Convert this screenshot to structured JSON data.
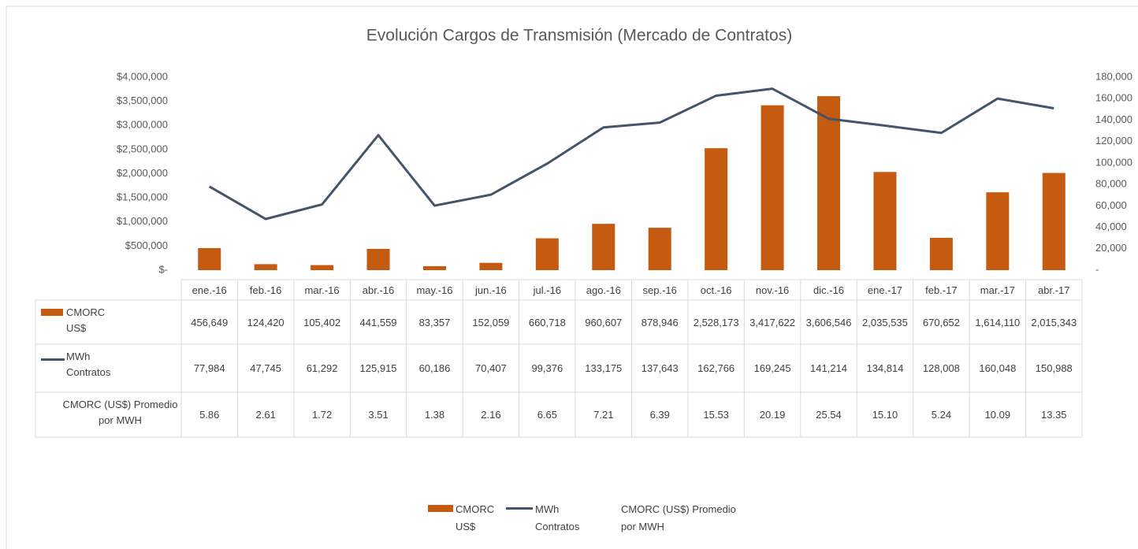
{
  "chart_data": {
    "type": "bar",
    "title": "Evolución Cargos de Transmisión  (Mercado de Contratos)",
    "categories": [
      "ene.-16",
      "feb.-16",
      "mar.-16",
      "abr.-16",
      "may.-16",
      "jun.-16",
      "jul.-16",
      "ago.-16",
      "sep.-16",
      "oct.-16",
      "nov.-16",
      "dic.-16",
      "ene.-17",
      "feb.-17",
      "mar.-17",
      "abr.-17"
    ],
    "series": [
      {
        "name": "CMORC US$",
        "type": "bar",
        "color": "#c55a11",
        "values": [
          456649,
          124420,
          105402,
          441559,
          83357,
          152059,
          660718,
          960607,
          878946,
          2528173,
          3417622,
          3606546,
          2035535,
          670652,
          1614110,
          2015343
        ],
        "value_labels": [
          "456,649",
          "124,420",
          "105,402",
          "441,559",
          "83,357",
          "152,059",
          "660,718",
          "960,607",
          "878,946",
          "2,528,173",
          "3,417,622",
          "3,606,546",
          "2,035,535",
          "670,652",
          "1,614,110",
          "2,015,343"
        ]
      },
      {
        "name": "MWh Contratos",
        "type": "line",
        "axis": "y2",
        "color": "#44546a",
        "values": [
          77984,
          47745,
          61292,
          125915,
          60186,
          70407,
          99376,
          133175,
          137643,
          162766,
          169245,
          141214,
          134814,
          128008,
          160048,
          150988
        ],
        "value_labels": [
          "77,984",
          "47,745",
          "61,292",
          "125,915",
          "60,186",
          "70,407",
          "99,376",
          "133,175",
          "137,643",
          "162,766",
          "169,245",
          "141,214",
          "134,814",
          "128,008",
          "160,048",
          "150,988"
        ]
      },
      {
        "name": "CMORC (US$) Promedio por MWH",
        "type": "table",
        "values": [
          5.86,
          2.61,
          1.72,
          3.51,
          1.38,
          2.16,
          6.65,
          7.21,
          6.39,
          15.53,
          20.19,
          25.54,
          15.1,
          5.24,
          10.09,
          13.35
        ],
        "value_labels": [
          "5.86",
          "2.61",
          "1.72",
          "3.51",
          "1.38",
          "2.16",
          "6.65",
          "7.21",
          "6.39",
          "15.53",
          "20.19",
          "25.54",
          "15.10",
          "5.24",
          "10.09",
          "13.35"
        ]
      }
    ],
    "ylim": [
      0,
      4000000
    ],
    "yticks": [
      {
        "value": 0,
        "label": "$-"
      },
      {
        "value": 500000,
        "label": "$500,000"
      },
      {
        "value": 1000000,
        "label": "$1,000,000"
      },
      {
        "value": 1500000,
        "label": "$1,500,000"
      },
      {
        "value": 2000000,
        "label": "$2,000,000"
      },
      {
        "value": 2500000,
        "label": "$2,500,000"
      },
      {
        "value": 3000000,
        "label": "$3,000,000"
      },
      {
        "value": 3500000,
        "label": "$3,500,000"
      },
      {
        "value": 4000000,
        "label": "$4,000,000"
      }
    ],
    "y2lim": [
      0,
      180000
    ],
    "y2ticks": [
      {
        "value": 0,
        "label": "-"
      },
      {
        "value": 20000,
        "label": "20,000"
      },
      {
        "value": 40000,
        "label": "40,000"
      },
      {
        "value": 60000,
        "label": "60,000"
      },
      {
        "value": 80000,
        "label": "80,000"
      },
      {
        "value": 100000,
        "label": "100,000"
      },
      {
        "value": 120000,
        "label": "120,000"
      },
      {
        "value": 140000,
        "label": "140,000"
      },
      {
        "value": 160000,
        "label": "160,000"
      },
      {
        "value": 180000,
        "label": "180,000"
      }
    ],
    "grid": false,
    "legend": "bottom"
  }
}
